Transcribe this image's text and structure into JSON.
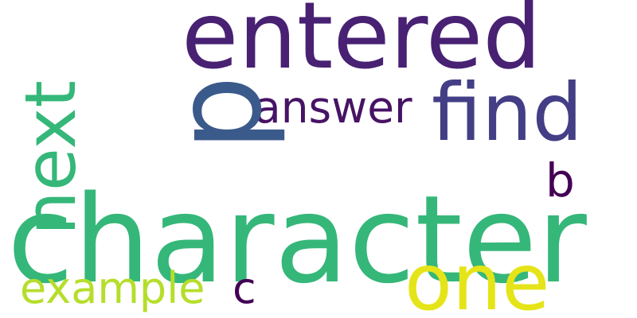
{
  "words": {
    "w_character": {
      "text": "character",
      "color": "#35b779"
    },
    "w_entered": {
      "text": "entered",
      "color": "#482173"
    },
    "w_p": {
      "text": "p",
      "color": "#3b5a8c"
    },
    "w_next": {
      "text": "next",
      "color": "#35b779"
    },
    "w_find": {
      "text": "find",
      "color": "#433e85"
    },
    "w_answer": {
      "text": "answer",
      "color": "#471365"
    },
    "w_one": {
      "text": "one",
      "color": "#e5e419"
    },
    "w_b": {
      "text": "b",
      "color": "#440154"
    },
    "w_example": {
      "text": "example",
      "color": "#b5de2b"
    },
    "w_c": {
      "text": "c",
      "color": "#440154"
    }
  }
}
